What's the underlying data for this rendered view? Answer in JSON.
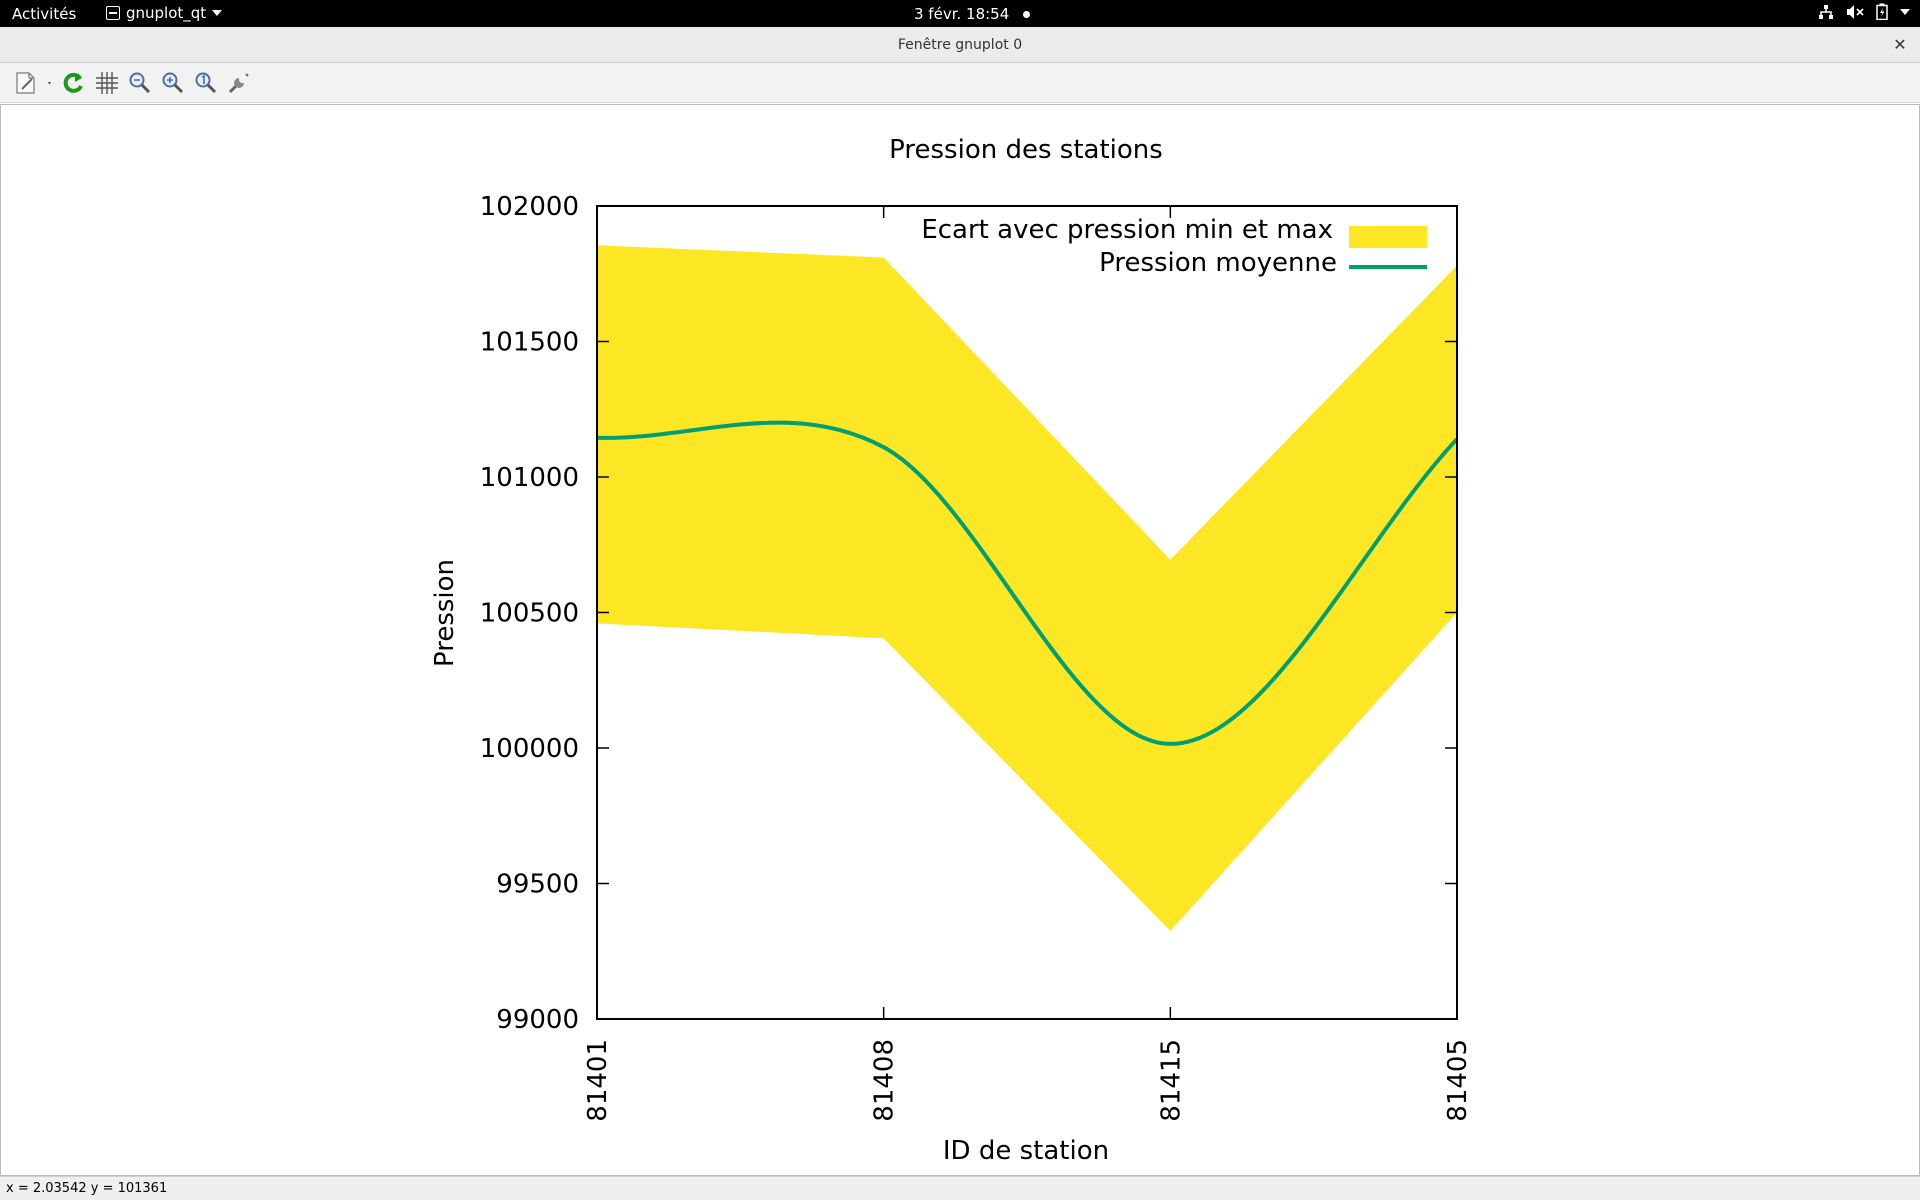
{
  "topbar": {
    "activities_label": "Activités",
    "app_name": "gnuplot_qt",
    "clock": "3 févr.  18:54",
    "tray_icons": [
      "network-icon",
      "volume-muted-icon",
      "battery-icon",
      "system-menu-caret"
    ]
  },
  "window": {
    "title": "Fenêtre gnuplot 0",
    "close_glyph": "✕"
  },
  "toolbar": {
    "buttons": [
      "export-icon",
      "replot-icon",
      "grid-icon",
      "zoom-previous-icon",
      "zoom-next-icon",
      "autoscale-icon",
      "settings-icon"
    ]
  },
  "status": {
    "coords": "x = 2.03542 y = 101361"
  },
  "colors": {
    "band": "#fde725",
    "mean_line": "#009e73",
    "axis": "#000000"
  },
  "chart_data": {
    "type": "area",
    "title": "Pression des stations",
    "xlabel": "ID de station",
    "ylabel": "Pression",
    "categories": [
      "81401",
      "81408",
      "81415",
      "81405"
    ],
    "series": [
      {
        "name": "Ecart avec pression min et max",
        "kind": "band",
        "min": [
          100460,
          100405,
          99325,
          100500
        ],
        "max": [
          101855,
          101810,
          100695,
          101780
        ]
      },
      {
        "name": "Pression moyenne",
        "kind": "line",
        "values": [
          101145,
          101110,
          100015,
          101140
        ]
      }
    ],
    "ylim": [
      99000,
      102000
    ],
    "yticks": [
      99000,
      99500,
      100000,
      100500,
      101000,
      101500,
      102000
    ],
    "xlim": [
      0,
      3
    ],
    "legend": "top-right",
    "grid": false
  }
}
